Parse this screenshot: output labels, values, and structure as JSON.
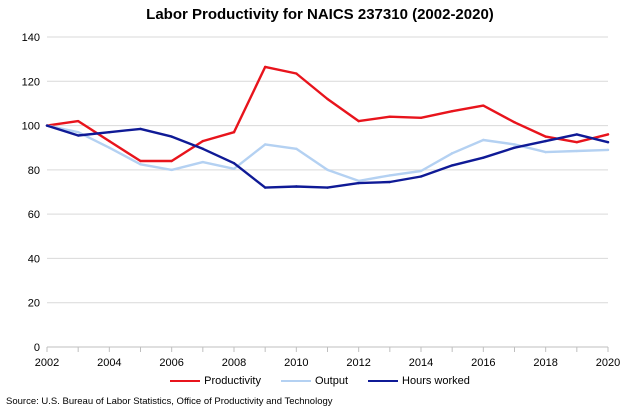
{
  "chart_data": {
    "type": "line",
    "title": "Labor Productivity for NAICS 237310  (2002-2020)",
    "xlabel": "",
    "ylabel": "",
    "x": [
      2002,
      2003,
      2004,
      2005,
      2006,
      2007,
      2008,
      2009,
      2010,
      2011,
      2012,
      2013,
      2014,
      2015,
      2016,
      2017,
      2018,
      2019,
      2020
    ],
    "xlim": [
      2002,
      2020
    ],
    "ylim": [
      0,
      140
    ],
    "x_ticks": [
      "2002",
      "2004",
      "2006",
      "2008",
      "2010",
      "2012",
      "2014",
      "2016",
      "2018",
      "2020"
    ],
    "y_ticks": [
      "0",
      "20",
      "40",
      "60",
      "80",
      "100",
      "120",
      "140"
    ],
    "grid": true,
    "legend_position": "bottom",
    "series": [
      {
        "name": "Productivity",
        "color": "#e8141c",
        "values": [
          100,
          102,
          93,
          84,
          84,
          93,
          97,
          126.5,
          123.5,
          112,
          102,
          104,
          103.5,
          106.5,
          109,
          101.5,
          95,
          92.5,
          96
        ]
      },
      {
        "name": "Output",
        "color": "#b4d1f2",
        "values": [
          100,
          97,
          90,
          82.5,
          80,
          83.5,
          80.5,
          91.5,
          89.5,
          80,
          75,
          77.5,
          79.5,
          87.5,
          93.5,
          91.5,
          88,
          88.5,
          89
        ]
      },
      {
        "name": "Hours worked",
        "color": "#0f1a96",
        "values": [
          100,
          95.5,
          97,
          98.5,
          95,
          89.5,
          83,
          72,
          72.5,
          72,
          74,
          74.5,
          77,
          82,
          85.5,
          90,
          93,
          96,
          92.5
        ]
      }
    ]
  },
  "source": "Source:  U.S. Bureau of Labor Statistics, Office of Productivity and Technology"
}
